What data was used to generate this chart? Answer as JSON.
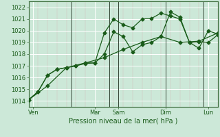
{
  "xlabel": "Pression niveau de la mer( hPa )",
  "bg_color": "#cce8d8",
  "grid_color": "#aad0c0",
  "line_color": "#1a5c1a",
  "xlim": [
    0,
    20
  ],
  "ylim": [
    1013.5,
    1022.5
  ],
  "yticks": [
    1014,
    1015,
    1016,
    1017,
    1018,
    1019,
    1020,
    1021,
    1022
  ],
  "xtick_positions": [
    0.5,
    7.0,
    9.5,
    14.5,
    19.0
  ],
  "xtick_labels": [
    "Ven",
    "Mar",
    "Sam",
    "Dim",
    "Lun"
  ],
  "vlines": [
    4.5,
    8.5,
    9.5,
    14.5,
    18.5
  ],
  "series1_x": [
    0,
    1,
    2,
    3,
    4,
    5,
    6,
    7,
    8,
    9,
    10,
    11,
    12,
    13,
    14,
    15,
    16,
    17,
    18,
    19,
    20
  ],
  "series1_y": [
    1014.1,
    1014.8,
    1016.2,
    1016.7,
    1016.85,
    1017.0,
    1017.2,
    1017.25,
    1019.8,
    1021.0,
    1020.5,
    1020.25,
    1021.0,
    1021.05,
    1021.5,
    1021.25,
    1021.0,
    1019.0,
    1018.5,
    1020.0,
    1019.7
  ],
  "series2_x": [
    0,
    1,
    2,
    3,
    4,
    5,
    6,
    7,
    8,
    9,
    10,
    11,
    12,
    13,
    14,
    15,
    16,
    17,
    18,
    19,
    20
  ],
  "series2_y": [
    1014.1,
    1014.8,
    1016.2,
    1016.7,
    1016.85,
    1017.0,
    1017.25,
    1017.25,
    1018.0,
    1019.9,
    1019.5,
    1018.2,
    1018.8,
    1019.0,
    1019.5,
    1021.6,
    1021.15,
    1019.0,
    1019.05,
    1019.0,
    1019.65
  ],
  "series3_x": [
    0,
    2,
    4,
    6,
    8,
    10,
    12,
    14,
    16,
    18,
    20
  ],
  "series3_y": [
    1014.1,
    1015.3,
    1016.85,
    1017.25,
    1017.7,
    1018.4,
    1019.0,
    1019.5,
    1019.0,
    1019.1,
    1019.8
  ],
  "xlabel_fontsize": 7,
  "tick_fontsize": 6,
  "line_width": 0.9,
  "marker_size": 2.5
}
